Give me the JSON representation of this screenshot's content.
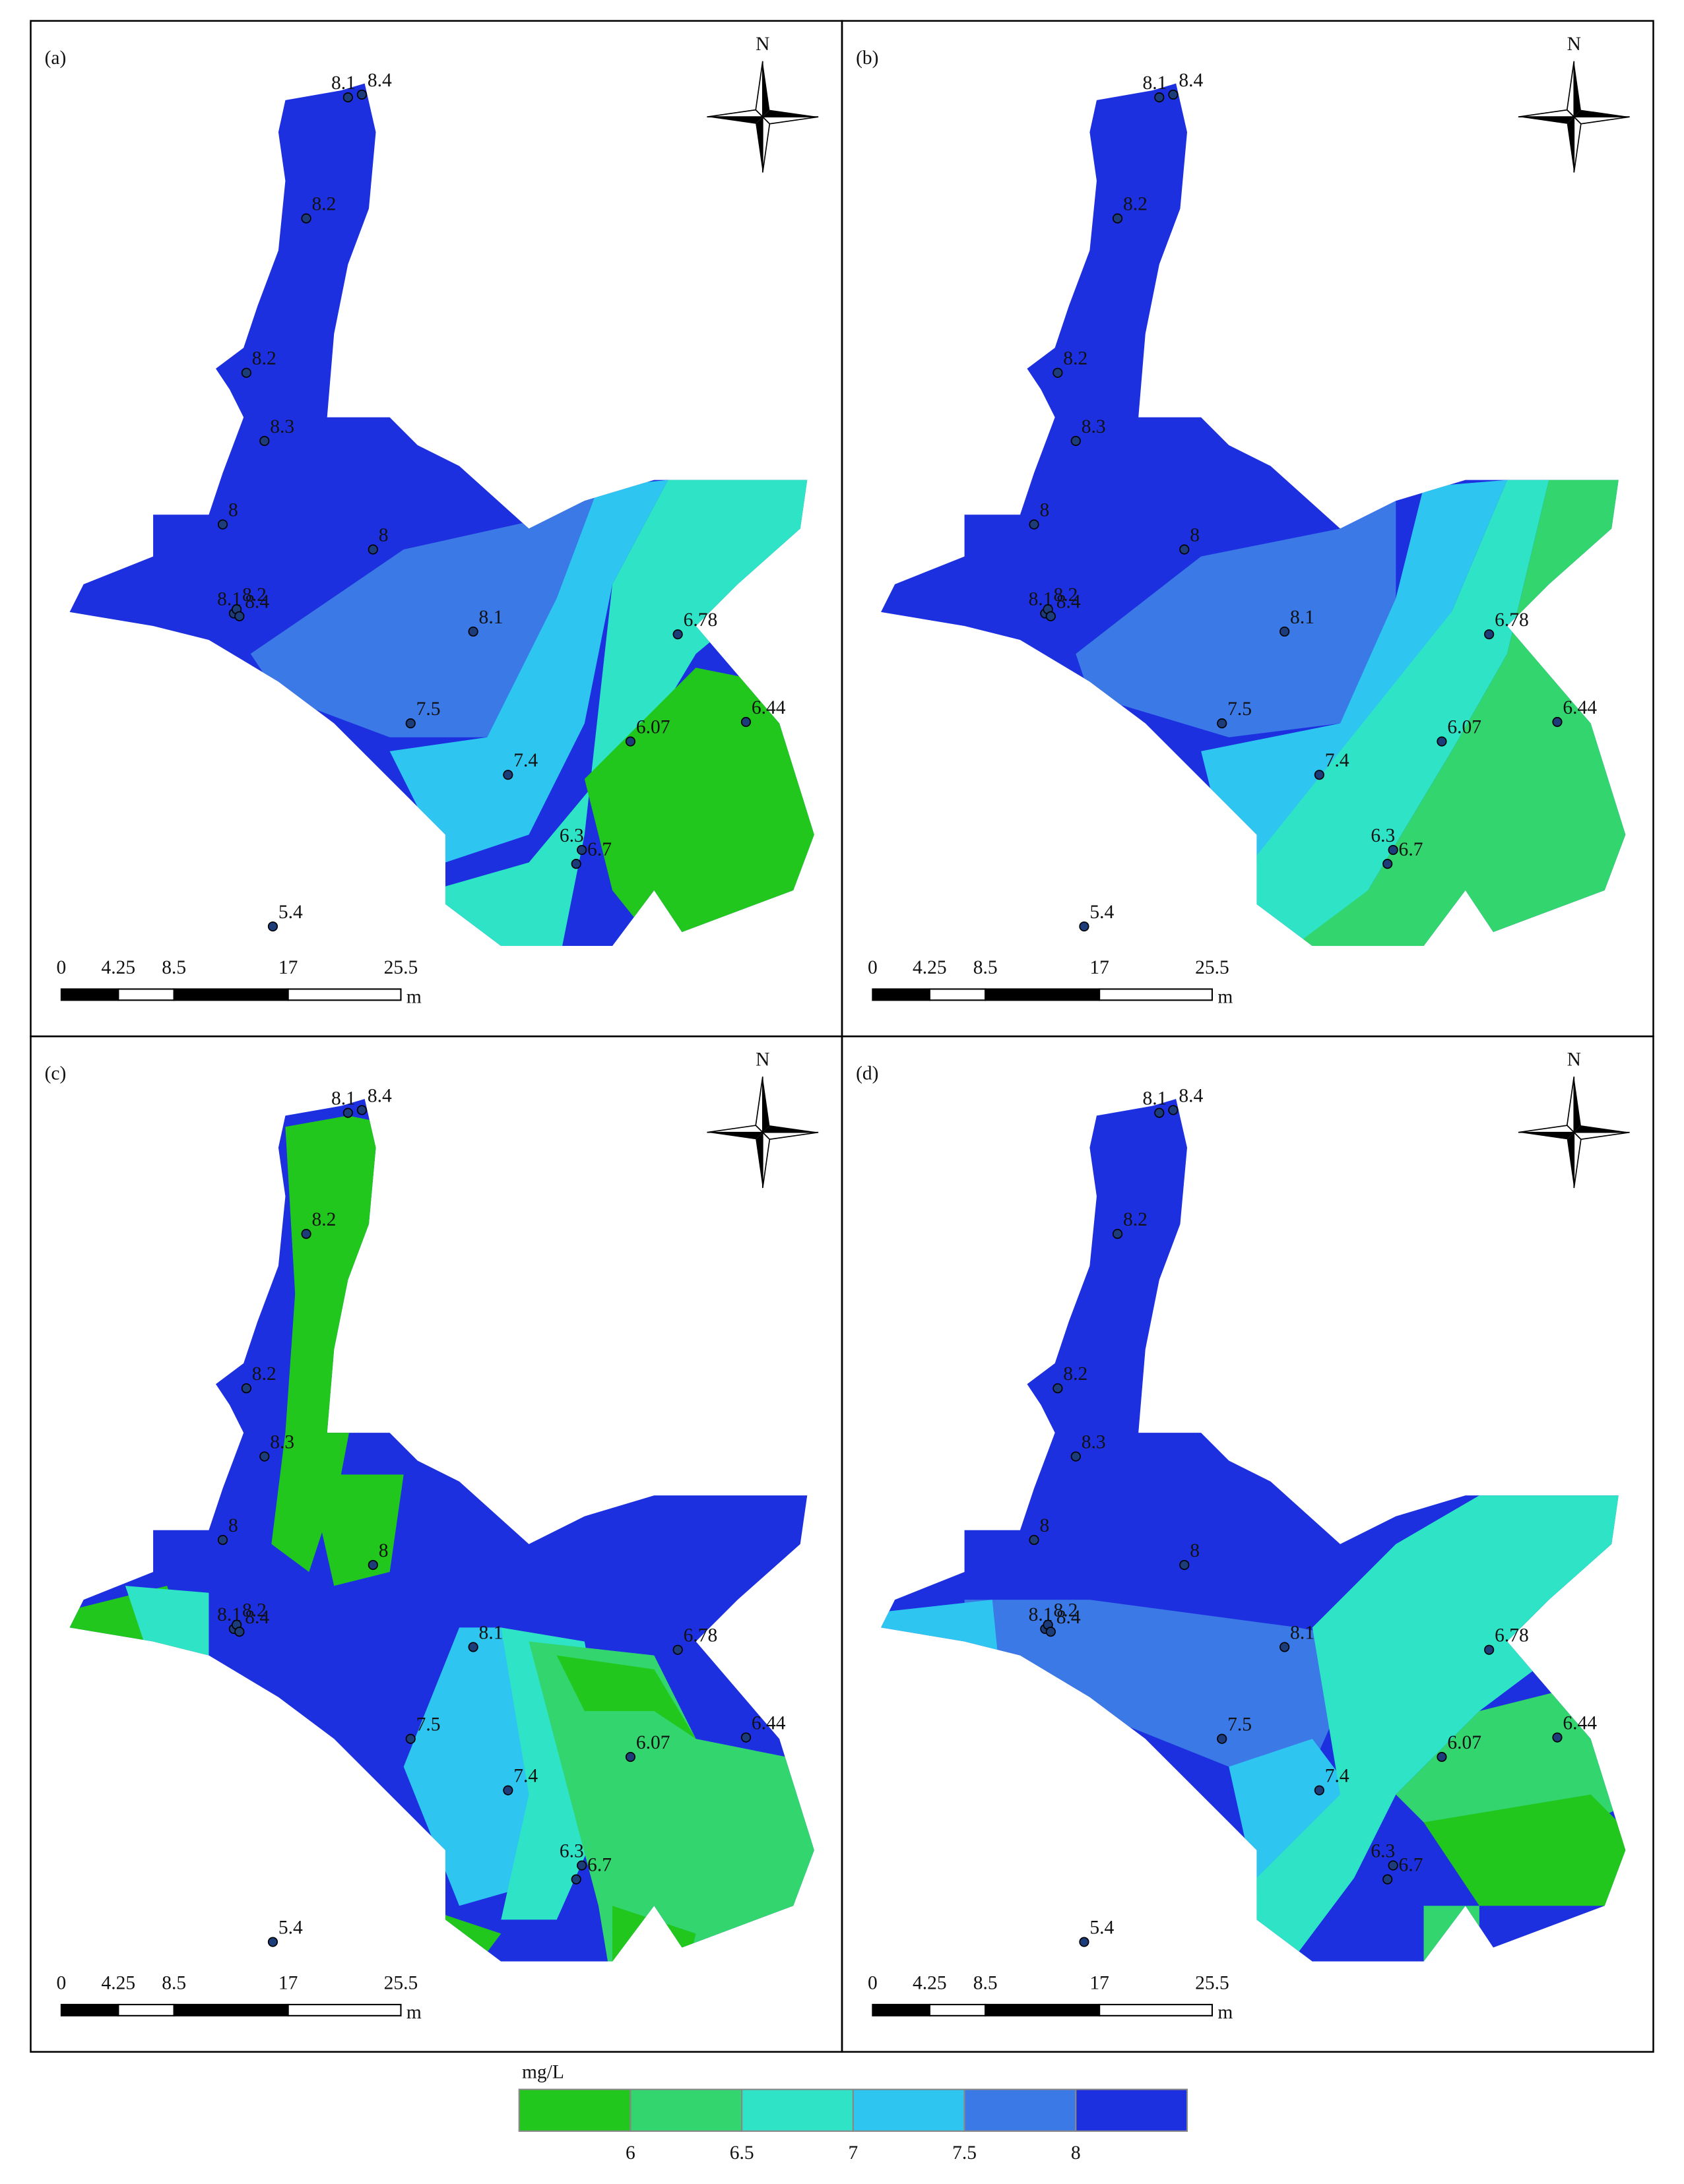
{
  "panels": [
    {
      "label": "(a)"
    },
    {
      "label": "(b)"
    },
    {
      "label": "(c)"
    },
    {
      "label": "(d)"
    }
  ],
  "north": "N",
  "scale_bar": {
    "ticks": [
      0,
      4.25,
      8.5,
      17,
      25.5
    ],
    "unit": "m"
  },
  "stations": [
    8.1,
    8.4,
    8.2,
    8.2,
    8.3,
    8,
    8,
    8.1,
    8.2,
    8.4,
    8.1,
    7.5,
    7.4,
    6.78,
    6.07,
    6.44,
    6.3,
    6.7,
    5.4
  ],
  "legend": {
    "unit": "mg/L",
    "colors": [
      "#22c71e",
      "#33d56e",
      "#2fe3c6",
      "#2ec6f0",
      "#3a79e6",
      "#1d30e0"
    ],
    "ticks": [
      6,
      6.5,
      7,
      7.5,
      8
    ]
  }
}
